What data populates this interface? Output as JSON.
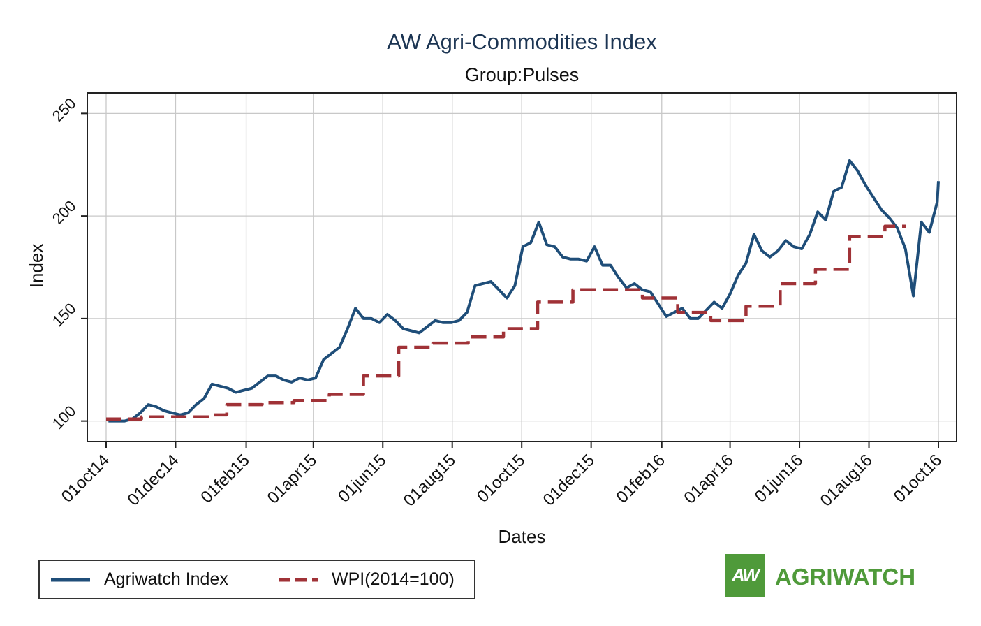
{
  "chart_data": {
    "type": "line",
    "title": "AW Agri-Commodities Index",
    "subtitle": "Group:Pulses",
    "xlabel": "Dates",
    "ylabel": "Index",
    "ylim": [
      90,
      260
    ],
    "yticks": [
      100,
      150,
      200,
      250
    ],
    "xlim": [
      "2014-10-01",
      "2016-10-01"
    ],
    "xticks": [
      {
        "date": "2014-10-01",
        "label": "01oct14"
      },
      {
        "date": "2014-12-01",
        "label": "01dec14"
      },
      {
        "date": "2015-02-01",
        "label": "01feb15"
      },
      {
        "date": "2015-04-01",
        "label": "01apr15"
      },
      {
        "date": "2015-06-01",
        "label": "01jun15"
      },
      {
        "date": "2015-08-01",
        "label": "01aug15"
      },
      {
        "date": "2015-10-01",
        "label": "01oct15"
      },
      {
        "date": "2015-12-01",
        "label": "01dec15"
      },
      {
        "date": "2016-02-01",
        "label": "01feb16"
      },
      {
        "date": "2016-04-01",
        "label": "01apr16"
      },
      {
        "date": "2016-06-01",
        "label": "01jun16"
      },
      {
        "date": "2016-08-01",
        "label": "01aug16"
      },
      {
        "date": "2016-10-01",
        "label": "01oct16"
      }
    ],
    "grid": true,
    "legend_position": "bottom-left",
    "series": [
      {
        "name": "Agriwatch Index",
        "color": "#1f4e79",
        "style": "solid",
        "points": [
          [
            "2014-10-03",
            100
          ],
          [
            "2014-10-10",
            100
          ],
          [
            "2014-10-17",
            100
          ],
          [
            "2014-10-24",
            101
          ],
          [
            "2014-10-31",
            104
          ],
          [
            "2014-11-07",
            108
          ],
          [
            "2014-11-14",
            107
          ],
          [
            "2014-11-21",
            105
          ],
          [
            "2014-11-28",
            104
          ],
          [
            "2014-12-05",
            103
          ],
          [
            "2014-12-12",
            104
          ],
          [
            "2014-12-19",
            108
          ],
          [
            "2014-12-26",
            111
          ],
          [
            "2015-01-02",
            118
          ],
          [
            "2015-01-09",
            117
          ],
          [
            "2015-01-16",
            116
          ],
          [
            "2015-01-23",
            114
          ],
          [
            "2015-01-30",
            115
          ],
          [
            "2015-02-06",
            116
          ],
          [
            "2015-02-13",
            119
          ],
          [
            "2015-02-20",
            122
          ],
          [
            "2015-02-27",
            122
          ],
          [
            "2015-03-06",
            120
          ],
          [
            "2015-03-13",
            119
          ],
          [
            "2015-03-20",
            121
          ],
          [
            "2015-03-27",
            120
          ],
          [
            "2015-04-03",
            121
          ],
          [
            "2015-04-10",
            130
          ],
          [
            "2015-04-17",
            133
          ],
          [
            "2015-04-24",
            136
          ],
          [
            "2015-05-01",
            145
          ],
          [
            "2015-05-08",
            155
          ],
          [
            "2015-05-15",
            150
          ],
          [
            "2015-05-22",
            150
          ],
          [
            "2015-05-29",
            148
          ],
          [
            "2015-06-05",
            152
          ],
          [
            "2015-06-12",
            149
          ],
          [
            "2015-06-19",
            145
          ],
          [
            "2015-06-26",
            144
          ],
          [
            "2015-07-03",
            143
          ],
          [
            "2015-07-10",
            146
          ],
          [
            "2015-07-17",
            149
          ],
          [
            "2015-07-24",
            148
          ],
          [
            "2015-07-31",
            148
          ],
          [
            "2015-08-07",
            149
          ],
          [
            "2015-08-14",
            153
          ],
          [
            "2015-08-21",
            166
          ],
          [
            "2015-08-28",
            167
          ],
          [
            "2015-09-04",
            168
          ],
          [
            "2015-09-11",
            164
          ],
          [
            "2015-09-18",
            160
          ],
          [
            "2015-09-25",
            166
          ],
          [
            "2015-10-02",
            185
          ],
          [
            "2015-10-09",
            187
          ],
          [
            "2015-10-16",
            197
          ],
          [
            "2015-10-23",
            186
          ],
          [
            "2015-10-30",
            185
          ],
          [
            "2015-11-06",
            180
          ],
          [
            "2015-11-13",
            179
          ],
          [
            "2015-11-20",
            179
          ],
          [
            "2015-11-27",
            178
          ],
          [
            "2015-12-04",
            185
          ],
          [
            "2015-12-11",
            176
          ],
          [
            "2015-12-18",
            176
          ],
          [
            "2015-12-25",
            170
          ],
          [
            "2016-01-01",
            165
          ],
          [
            "2016-01-08",
            167
          ],
          [
            "2016-01-15",
            164
          ],
          [
            "2016-01-22",
            163
          ],
          [
            "2016-01-29",
            157
          ],
          [
            "2016-02-05",
            151
          ],
          [
            "2016-02-12",
            153
          ],
          [
            "2016-02-19",
            155
          ],
          [
            "2016-02-26",
            150
          ],
          [
            "2016-03-04",
            150
          ],
          [
            "2016-03-11",
            154
          ],
          [
            "2016-03-18",
            158
          ],
          [
            "2016-03-25",
            155
          ],
          [
            "2016-04-01",
            162
          ],
          [
            "2016-04-08",
            171
          ],
          [
            "2016-04-15",
            177
          ],
          [
            "2016-04-22",
            191
          ],
          [
            "2016-04-29",
            183
          ],
          [
            "2016-05-06",
            180
          ],
          [
            "2016-05-13",
            183
          ],
          [
            "2016-05-20",
            188
          ],
          [
            "2016-05-27",
            185
          ],
          [
            "2016-06-03",
            184
          ],
          [
            "2016-06-10",
            191
          ],
          [
            "2016-06-17",
            202
          ],
          [
            "2016-06-24",
            198
          ],
          [
            "2016-07-01",
            212
          ],
          [
            "2016-07-08",
            214
          ],
          [
            "2016-07-15",
            227
          ],
          [
            "2016-07-22",
            222
          ],
          [
            "2016-07-29",
            215
          ],
          [
            "2016-08-05",
            209
          ],
          [
            "2016-08-12",
            203
          ],
          [
            "2016-08-19",
            199
          ],
          [
            "2016-08-26",
            194
          ],
          [
            "2016-09-02",
            184
          ],
          [
            "2016-09-09",
            161
          ],
          [
            "2016-09-16",
            197
          ],
          [
            "2016-09-23",
            192
          ],
          [
            "2016-09-30",
            207
          ],
          [
            "2016-10-01",
            217
          ]
        ]
      },
      {
        "name": "WPI(2014=100)",
        "color": "#a03237",
        "style": "dashed",
        "points": [
          [
            "2014-10-01",
            101
          ],
          [
            "2014-11-01",
            102
          ],
          [
            "2014-12-01",
            102
          ],
          [
            "2015-01-01",
            103
          ],
          [
            "2015-01-15",
            108
          ],
          [
            "2015-02-15",
            109
          ],
          [
            "2015-03-15",
            110
          ],
          [
            "2015-04-15",
            113
          ],
          [
            "2015-05-15",
            122
          ],
          [
            "2015-06-15",
            136
          ],
          [
            "2015-07-15",
            138
          ],
          [
            "2015-08-15",
            141
          ],
          [
            "2015-09-15",
            145
          ],
          [
            "2015-10-15",
            158
          ],
          [
            "2015-11-15",
            164
          ],
          [
            "2015-12-15",
            164
          ],
          [
            "2016-01-15",
            160
          ],
          [
            "2016-02-15",
            153
          ],
          [
            "2016-03-15",
            149
          ],
          [
            "2016-04-15",
            156
          ],
          [
            "2016-05-15",
            167
          ],
          [
            "2016-06-15",
            174
          ],
          [
            "2016-07-15",
            190
          ],
          [
            "2016-08-15",
            195
          ]
        ]
      }
    ]
  },
  "legend": {
    "items": [
      {
        "label": "Agriwatch Index",
        "color": "#1f4e79",
        "style": "solid"
      },
      {
        "label": "WPI(2014=100)",
        "color": "#a03237",
        "style": "dashed"
      }
    ]
  },
  "logo": {
    "mark": "AW",
    "name": "AGRIWATCH",
    "color": "#4f9a3a"
  }
}
